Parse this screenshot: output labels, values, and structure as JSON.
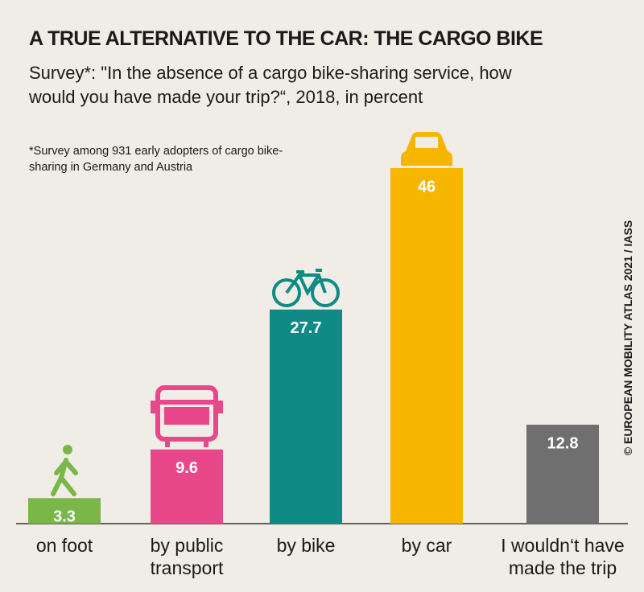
{
  "chart_data": {
    "type": "bar",
    "title": "A TRUE ALTERNATIVE TO THE CAR: THE CARGO BIKE",
    "subtitle": "Survey*: \"In the absence of a cargo bike-sharing service, how would you have made your trip?“, 2018, in percent",
    "note": "*Survey among 931 early adopters of cargo bike-sharing in Germany and Austria",
    "credit": "© EUROPEAN MOBILITY ATLAS 2021 / IASS",
    "categories": [
      "on foot",
      "by public transport",
      "by bike",
      "by car",
      "I wouldn‘t have made the trip"
    ],
    "values": [
      3.3,
      9.6,
      27.7,
      46,
      12.8
    ],
    "colors": [
      "#7ab648",
      "#e8488a",
      "#0f8a84",
      "#f7b500",
      "#6f6f6f"
    ]
  }
}
